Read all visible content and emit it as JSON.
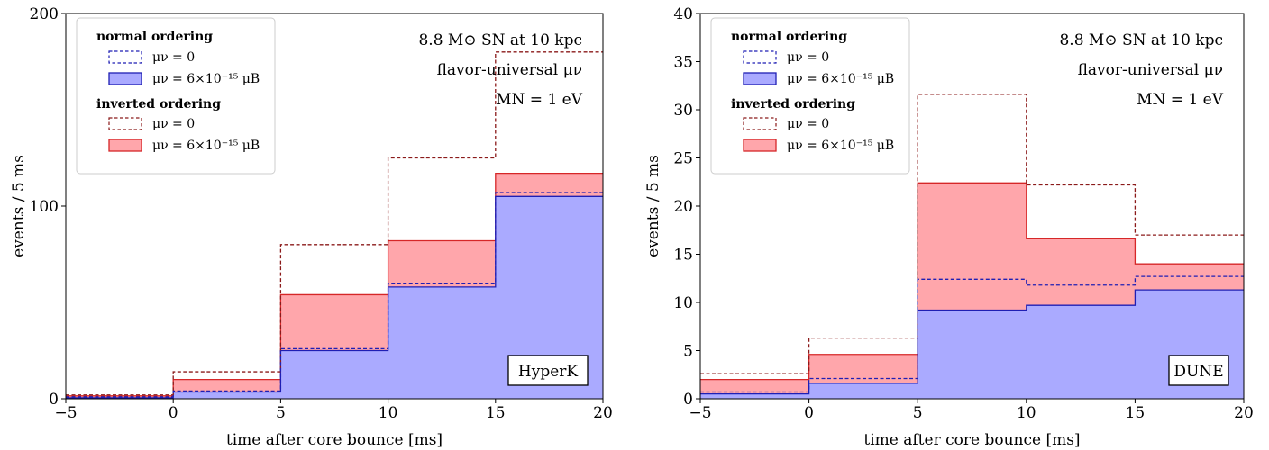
{
  "chart_data": [
    {
      "type": "step-area",
      "detector": "HyperK",
      "xlabel": "time after core bounce [ms]",
      "ylabel": "events / 5 ms",
      "xlim": [
        -5,
        20
      ],
      "ylim": [
        0,
        200
      ],
      "xticks": [
        "−5",
        "0",
        "5",
        "10",
        "15",
        "20"
      ],
      "yticks": [
        "0",
        "100",
        "200"
      ],
      "ytick_values": [
        0,
        100,
        200
      ],
      "bin_edges": [
        -5,
        0,
        5,
        10,
        15,
        20
      ],
      "annotations": [
        "8.8 M⊙ SN at 10 kpc",
        "flavor-universal μν",
        "MN = 1 eV"
      ],
      "legend": {
        "placement": "top-left",
        "groups": [
          {
            "title": "normal ordering",
            "entries": [
              "μν = 0",
              "μν = 6×10⁻¹⁵ μB"
            ]
          },
          {
            "title": "inverted ordering",
            "entries": [
              "μν = 0",
              "μν = 6×10⁻¹⁵ μB"
            ]
          }
        ]
      },
      "series": [
        {
          "name": "normal ordering, μν = 0",
          "style": "dashed",
          "color": "#1f1fb4",
          "values": [
            1,
            4,
            26,
            60,
            107
          ]
        },
        {
          "name": "normal ordering, μν = 6×10⁻¹⁵ μB",
          "style": "filled",
          "color": "#aaaaff",
          "edge": "#1f1fb4",
          "values": [
            0.5,
            3.5,
            25,
            58,
            105
          ]
        },
        {
          "name": "inverted ordering, μν = 0",
          "style": "dashed",
          "color": "#8b1a1a",
          "values": [
            2,
            14,
            80,
            125,
            180
          ]
        },
        {
          "name": "inverted ordering, μν = 6×10⁻¹⁵ μB",
          "style": "filled",
          "color": "#ffa6ab",
          "edge": "#d62728",
          "values": [
            1.5,
            10,
            54,
            82,
            117
          ]
        }
      ]
    },
    {
      "type": "step-area",
      "detector": "DUNE",
      "xlabel": "time after core bounce [ms]",
      "ylabel": "events / 5 ms",
      "xlim": [
        -5,
        20
      ],
      "ylim": [
        0,
        40
      ],
      "xticks": [
        "−5",
        "0",
        "5",
        "10",
        "15",
        "20"
      ],
      "yticks": [
        "0",
        "5",
        "10",
        "15",
        "20",
        "25",
        "30",
        "35",
        "40"
      ],
      "ytick_values": [
        0,
        5,
        10,
        15,
        20,
        25,
        30,
        35,
        40
      ],
      "bin_edges": [
        -5,
        0,
        5,
        10,
        15,
        20
      ],
      "annotations": [
        "8.8 M⊙ SN at 10 kpc",
        "flavor-universal μν",
        "MN = 1 eV"
      ],
      "legend": {
        "placement": "top-left",
        "groups": [
          {
            "title": "normal ordering",
            "entries": [
              "μν = 0",
              "μν = 6×10⁻¹⁵ μB"
            ]
          },
          {
            "title": "inverted ordering",
            "entries": [
              "μν = 0",
              "μν = 6×10⁻¹⁵ μB"
            ]
          }
        ]
      },
      "series": [
        {
          "name": "normal ordering, μν = 0",
          "style": "dashed",
          "color": "#1f1fb4",
          "values": [
            0.7,
            2.1,
            12.4,
            11.8,
            12.7
          ]
        },
        {
          "name": "normal ordering, μν = 6×10⁻¹⁵ μB",
          "style": "filled",
          "color": "#aaaaff",
          "edge": "#1f1fb4",
          "values": [
            0.5,
            1.6,
            9.2,
            9.7,
            11.3
          ]
        },
        {
          "name": "inverted ordering, μν = 0",
          "style": "dashed",
          "color": "#8b1a1a",
          "values": [
            2.6,
            6.3,
            31.6,
            22.2,
            17.0
          ]
        },
        {
          "name": "inverted ordering, μν = 6×10⁻¹⁵ μB",
          "style": "filled",
          "color": "#ffa6ab",
          "edge": "#d62728",
          "values": [
            2.0,
            4.6,
            22.4,
            16.6,
            14.0
          ]
        }
      ]
    }
  ]
}
